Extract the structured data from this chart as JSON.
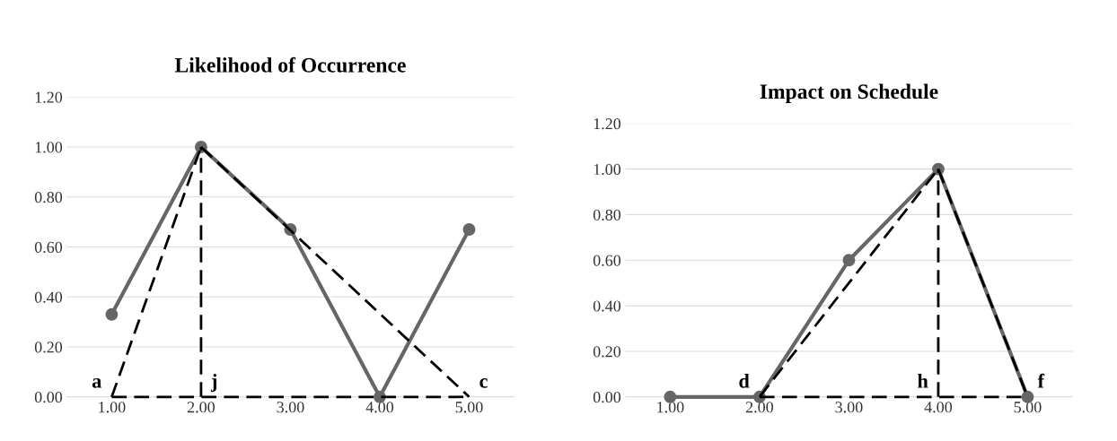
{
  "chart_data": [
    {
      "type": "line",
      "title": "Likelihood of Occurrence",
      "xlim": [
        0.5,
        5.5
      ],
      "xticks": [
        {
          "value": 1,
          "label": "1.00"
        },
        {
          "value": 2,
          "label": "2.00"
        },
        {
          "value": 3,
          "label": "3.00"
        },
        {
          "value": 4,
          "label": "4.00"
        },
        {
          "value": 5,
          "label": "5.00"
        }
      ],
      "ylim": [
        0,
        1.2
      ],
      "yticks": [
        {
          "value": 0,
          "label": "0.00"
        },
        {
          "value": 0.2,
          "label": "0.20"
        },
        {
          "value": 0.4,
          "label": "0.40"
        },
        {
          "value": 0.6,
          "label": "0.60"
        },
        {
          "value": 0.8,
          "label": "0.80"
        },
        {
          "value": 1,
          "label": "1.00"
        },
        {
          "value": 1.2,
          "label": "1.20"
        }
      ],
      "grid": "y",
      "legend": false,
      "series": [
        {
          "color": "#666666",
          "x": [
            1,
            2,
            3,
            4,
            5
          ],
          "values": [
            0.33,
            1.0,
            0.67,
            0.0,
            0.67
          ],
          "marker": "circle",
          "line_style": "solid"
        },
        {
          "color": "#000000",
          "x": [
            1,
            2
          ],
          "values": [
            0,
            1
          ],
          "marker": "none",
          "line_style": "dashed"
        },
        {
          "color": "#000000",
          "x": [
            2,
            5
          ],
          "values": [
            1,
            0
          ],
          "marker": "none",
          "line_style": "dashed"
        },
        {
          "color": "#000000",
          "x": [
            1,
            5
          ],
          "values": [
            0,
            0
          ],
          "marker": "none",
          "line_style": "dashed"
        },
        {
          "color": "#000000",
          "x": [
            2,
            2
          ],
          "values": [
            0,
            1
          ],
          "marker": "none",
          "line_style": "dashed"
        }
      ],
      "annotations": [
        {
          "text": "a",
          "x": 1,
          "y": 0
        },
        {
          "text": "j",
          "x": 2,
          "y": 0
        },
        {
          "text": "c",
          "x": 5,
          "y": 0
        }
      ]
    },
    {
      "type": "line",
      "title": "Impact on Schedule",
      "xlim": [
        0.5,
        5.5
      ],
      "xticks": [
        {
          "value": 1,
          "label": "1.00"
        },
        {
          "value": 2,
          "label": "2.00"
        },
        {
          "value": 3,
          "label": "3.00"
        },
        {
          "value": 4,
          "label": "4.00"
        },
        {
          "value": 5,
          "label": "5.00"
        }
      ],
      "ylim": [
        0,
        1.2
      ],
      "yticks": [
        {
          "value": 0,
          "label": "0.00"
        },
        {
          "value": 0.2,
          "label": "0.20"
        },
        {
          "value": 0.4,
          "label": "0.40"
        },
        {
          "value": 0.6,
          "label": "0.60"
        },
        {
          "value": 0.8,
          "label": "0.80"
        },
        {
          "value": 1,
          "label": "1.00"
        },
        {
          "value": 1.2,
          "label": "1.20"
        }
      ],
      "grid": "y",
      "legend": false,
      "series": [
        {
          "color": "#666666",
          "x": [
            1,
            2,
            3,
            4,
            5
          ],
          "values": [
            0,
            0,
            0.6,
            1.0,
            0
          ],
          "marker": "circle",
          "line_style": "solid"
        },
        {
          "color": "#000000",
          "x": [
            2,
            4
          ],
          "values": [
            0,
            1
          ],
          "marker": "none",
          "line_style": "dashed"
        },
        {
          "color": "#000000",
          "x": [
            4,
            5
          ],
          "values": [
            1,
            0
          ],
          "marker": "none",
          "line_style": "dashed"
        },
        {
          "color": "#000000",
          "x": [
            2,
            5
          ],
          "values": [
            0,
            0
          ],
          "marker": "none",
          "line_style": "dashed"
        },
        {
          "color": "#000000",
          "x": [
            4,
            4
          ],
          "values": [
            0,
            1
          ],
          "marker": "none",
          "line_style": "dashed"
        }
      ],
      "annotations": [
        {
          "text": "d",
          "x": 2,
          "y": 0
        },
        {
          "text": "h",
          "x": 4,
          "y": 0
        },
        {
          "text": "f",
          "x": 5,
          "y": 0
        }
      ]
    }
  ]
}
